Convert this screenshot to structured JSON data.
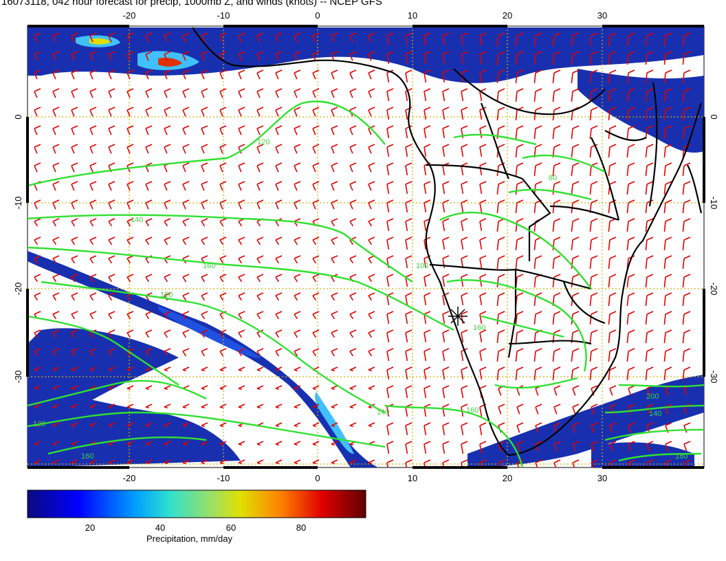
{
  "title": "16073118, 042 hour forecast for precip, 1000mb Z, and winds (knots) -- NCEP GFS",
  "axes": {
    "x_ticks": [
      "-20",
      "-10",
      "0",
      "10",
      "20",
      "30"
    ],
    "y_ticks": [
      "0",
      "-10",
      "-20",
      "-30"
    ]
  },
  "contour_labels": [
    "80",
    "120",
    "140",
    "160",
    "160",
    "160",
    "140",
    "120",
    "160",
    "200",
    "140",
    "180",
    "160",
    "100"
  ],
  "colorbar": {
    "label": "Precipitation, mm/day",
    "ticks": [
      "20",
      "40",
      "60",
      "80"
    ],
    "range": [
      0,
      100
    ],
    "colors": [
      "#0a0a80",
      "#0000ff",
      "#00a0ff",
      "#30e0d0",
      "#a0e060",
      "#e0e000",
      "#ff8000",
      "#e00000",
      "#600000"
    ]
  },
  "colors": {
    "contour": "#30e030",
    "wind_barb": "#e00000",
    "coastline": "#000000",
    "grid": "#d0b000"
  }
}
